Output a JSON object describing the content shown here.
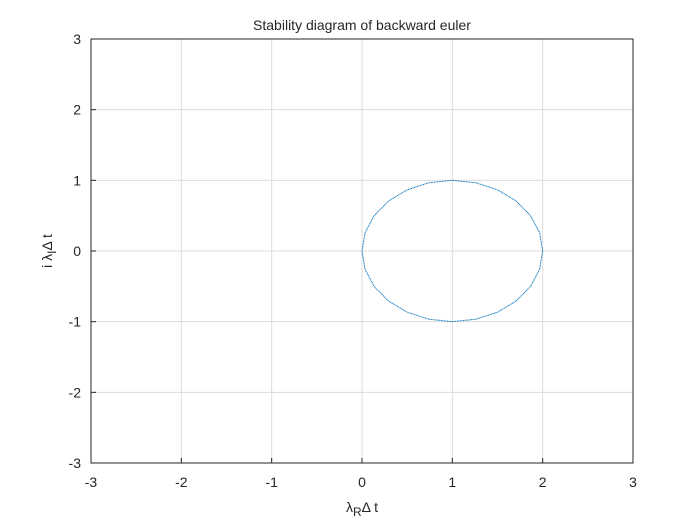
{
  "chart_data": {
    "type": "line",
    "title": "Stability diagram of backward euler",
    "xlabel": [
      "λ",
      "R",
      "Δ t"
    ],
    "ylabel": [
      "i λ",
      "I",
      "Δ t"
    ],
    "xlim": [
      -3,
      3
    ],
    "ylim": [
      -3,
      3
    ],
    "xticks": [
      -3,
      -2,
      -1,
      0,
      1,
      2,
      3
    ],
    "yticks": [
      -3,
      -2,
      -1,
      0,
      1,
      2,
      3
    ],
    "grid": true,
    "series": [
      {
        "color": "#0072bd",
        "x": [
          2,
          1.966,
          1.866,
          1.707,
          1.5,
          1.259,
          1,
          0.741,
          0.5,
          0.293,
          0.134,
          0.034,
          0,
          0.034,
          0.134,
          0.293,
          0.5,
          0.741,
          1,
          1.259,
          1.5,
          1.707,
          1.866,
          1.966,
          2
        ],
        "values": [
          0,
          0.259,
          0.5,
          0.707,
          0.866,
          0.966,
          1,
          0.966,
          0.866,
          0.707,
          0.5,
          0.259,
          0,
          -0.259,
          -0.5,
          -0.707,
          -0.866,
          -0.966,
          -1,
          -0.966,
          -0.866,
          -0.707,
          -0.5,
          -0.259,
          0
        ]
      }
    ]
  }
}
